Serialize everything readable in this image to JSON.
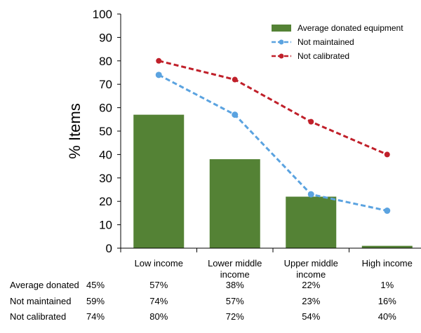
{
  "chart_data": {
    "type": "bar",
    "categories": [
      "Low income",
      "Lower middle income",
      "Upper middle income",
      "High income"
    ],
    "category_lines": [
      [
        "Low income"
      ],
      [
        "Lower middle",
        "income"
      ],
      [
        "Upper middle",
        "income"
      ],
      [
        "High income"
      ]
    ],
    "series": [
      {
        "name": "Average donated equipment",
        "kind": "bar",
        "color": "#548235",
        "values": [
          57,
          38,
          22,
          1
        ]
      },
      {
        "name": "Not maintained",
        "kind": "line",
        "color": "#5ba3e0",
        "style": "dashed",
        "values": [
          74,
          57,
          23,
          16
        ]
      },
      {
        "name": "Not calibrated",
        "kind": "line",
        "color": "#c0202a",
        "style": "dashed",
        "values": [
          80,
          72,
          54,
          40
        ]
      }
    ],
    "ylabel": "% Items",
    "xlabel": "",
    "ylim": [
      0,
      100
    ],
    "yticks": [
      0,
      10,
      20,
      30,
      40,
      50,
      60,
      70,
      80,
      90,
      100
    ],
    "legend_position": "top-right",
    "grid": false,
    "table": {
      "rows": [
        {
          "label": "Average donated",
          "overall": "45%",
          "values": [
            "57%",
            "38%",
            "22%",
            "1%"
          ]
        },
        {
          "label": "Not maintained",
          "overall": "59%",
          "values": [
            "74%",
            "57%",
            "23%",
            "16%"
          ]
        },
        {
          "label": "Not calibrated",
          "overall": "74%",
          "values": [
            "80%",
            "72%",
            "54%",
            "40%"
          ]
        }
      ]
    }
  }
}
